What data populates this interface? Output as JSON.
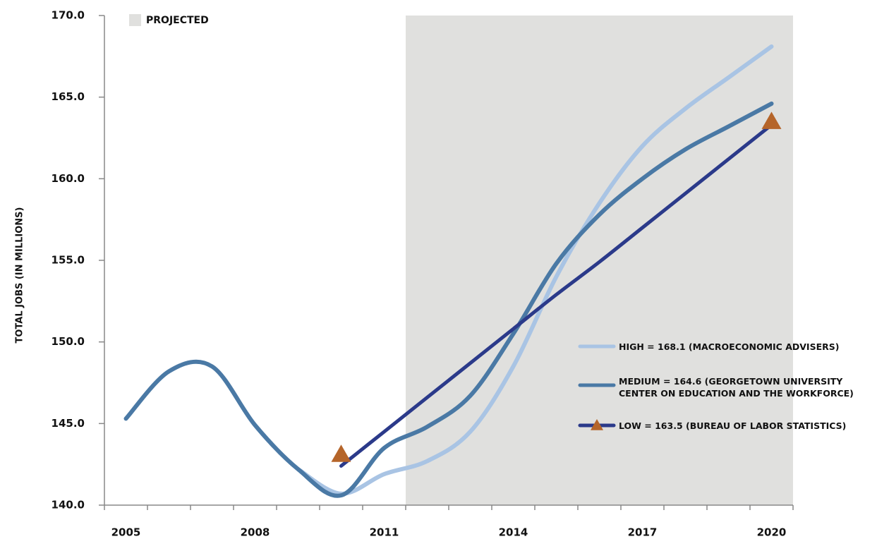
{
  "chart_data": {
    "type": "line",
    "y_label": "TOTAL JOBS (IN MILLIONS)",
    "categories": [
      "2005",
      null,
      null,
      "2008",
      null,
      null,
      "2011",
      null,
      null,
      "2014",
      null,
      null,
      "2017",
      null,
      null,
      "2020"
    ],
    "projected": {
      "label": "PROJECTED",
      "from": 7,
      "color": "#e0e0de"
    },
    "ylim": [
      140,
      170
    ],
    "yticks": [
      {
        "value": 140,
        "label": "140.0"
      },
      {
        "value": 145,
        "label": "145.0"
      },
      {
        "value": 150,
        "label": "150.0"
      },
      {
        "value": 155,
        "label": "155.0"
      },
      {
        "value": 160,
        "label": "160.0"
      },
      {
        "value": 165,
        "label": "165.0"
      },
      {
        "value": 170,
        "label": "170.0"
      }
    ],
    "series": [
      {
        "name": "HIGH = 168.1 (MACROECONOMIC ADVISERS)",
        "color": "#a9c4e4",
        "values": [
          null,
          null,
          null,
          null,
          142.2,
          140.7,
          141.9,
          142.7,
          144.5,
          148.5,
          154.0,
          158.5,
          162.0,
          164.3,
          166.2,
          168.1
        ]
      },
      {
        "name": "MEDIUM = 164.6 (GEORGETOWN UNIVERSITY\nCENTER ON EDUCATION AND THE WORKFORCE)",
        "color": "#4a79a5",
        "values": [
          145.3,
          148.2,
          148.5,
          144.9,
          142.2,
          140.6,
          143.5,
          144.8,
          146.7,
          150.5,
          154.8,
          157.8,
          160.0,
          161.8,
          163.2,
          164.6
        ]
      },
      {
        "name": "LOW = 163.5 (BUREAU OF LABOR STATISTICS)",
        "color": "#2b3a8a",
        "marker_color": "#b5652a",
        "values": [
          null,
          null,
          null,
          null,
          null,
          142.4,
          144.5,
          146.6,
          148.7,
          150.8,
          152.9,
          154.9,
          157.0,
          159.1,
          161.2,
          163.3
        ],
        "markers": [
          null,
          null,
          null,
          null,
          null,
          143.1,
          null,
          null,
          null,
          null,
          null,
          null,
          null,
          null,
          null,
          163.5
        ]
      }
    ]
  }
}
